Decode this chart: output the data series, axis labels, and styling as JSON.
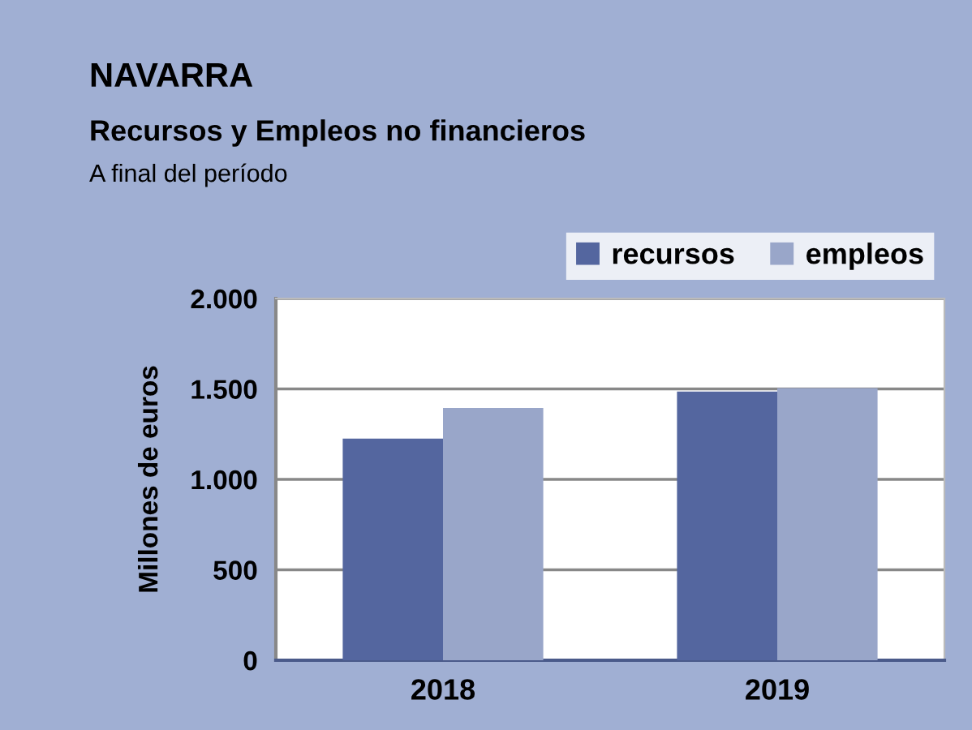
{
  "chart_data": {
    "type": "bar",
    "title": "NAVARRA",
    "subtitle": "Recursos y Empleos no financieros",
    "annotations": [
      "A final del período"
    ],
    "ylabel": "Millones de euros",
    "categories": [
      "2018",
      "2019"
    ],
    "series": [
      {
        "name": "recursos",
        "color": "#54669f",
        "values": [
          1225,
          1485
        ]
      },
      {
        "name": "empleos",
        "color": "#99a6c9",
        "values": [
          1395,
          1505
        ]
      }
    ],
    "ylim": [
      0,
      2000
    ],
    "yticks": [
      {
        "value": 0,
        "label": "0"
      },
      {
        "value": 500,
        "label": "500"
      },
      {
        "value": 1000,
        "label": "1.000"
      },
      {
        "value": 1500,
        "label": "1.500"
      },
      {
        "value": 2000,
        "label": "2.000"
      }
    ],
    "grid": "y",
    "legend": "top right"
  }
}
